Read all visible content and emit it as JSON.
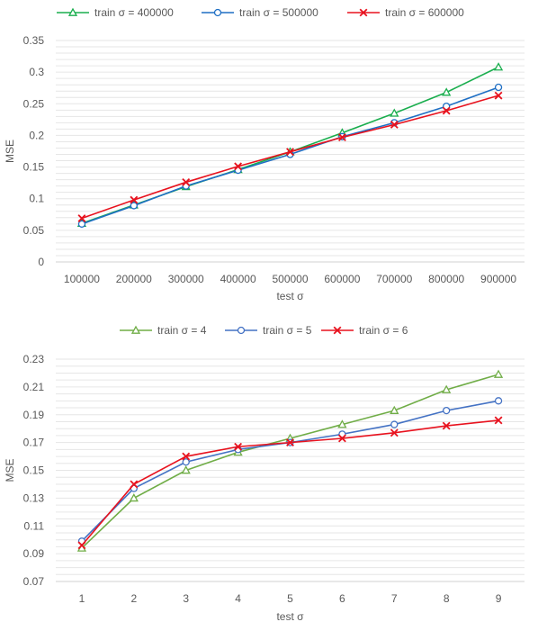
{
  "chart_data": [
    {
      "type": "line",
      "title": "",
      "xlabel": "test σ",
      "ylabel": "MSE",
      "categories": [
        "100000",
        "200000",
        "300000",
        "400000",
        "500000",
        "600000",
        "700000",
        "800000",
        "900000"
      ],
      "yticks": [
        "0",
        "0.05",
        "0.1",
        "0.15",
        "0.2",
        "0.25",
        "0.3",
        "0.35"
      ],
      "ylim": [
        0,
        0.35
      ],
      "grid": true,
      "legend_position": "top",
      "series": [
        {
          "name": "train σ = 400000",
          "color": "#1aae4e",
          "marker": "triangle",
          "values": [
            0.061,
            0.09,
            0.119,
            0.146,
            0.174,
            0.204,
            0.235,
            0.268,
            0.308
          ]
        },
        {
          "name": "train σ = 500000",
          "color": "#1f6fc4",
          "marker": "circle",
          "values": [
            0.06,
            0.089,
            0.12,
            0.145,
            0.17,
            0.198,
            0.22,
            0.246,
            0.276
          ]
        },
        {
          "name": "train σ = 600000",
          "color": "#e8121e",
          "marker": "x",
          "values": [
            0.069,
            0.098,
            0.126,
            0.151,
            0.174,
            0.197,
            0.217,
            0.239,
            0.263
          ]
        }
      ]
    },
    {
      "type": "line",
      "title": "",
      "xlabel": "test σ",
      "ylabel": "MSE",
      "categories": [
        "1",
        "2",
        "3",
        "4",
        "5",
        "6",
        "7",
        "8",
        "9"
      ],
      "yticks": [
        "0.07",
        "0.09",
        "0.11",
        "0.13",
        "0.15",
        "0.17",
        "0.19",
        "0.21",
        "0.23"
      ],
      "ylim": [
        0.07,
        0.23
      ],
      "grid": true,
      "legend_position": "top",
      "series": [
        {
          "name": "train σ = 4",
          "color": "#70ad47",
          "marker": "triangle",
          "values": [
            0.094,
            0.13,
            0.15,
            0.163,
            0.173,
            0.183,
            0.193,
            0.208,
            0.219
          ]
        },
        {
          "name": "train σ = 5",
          "color": "#4472c4",
          "marker": "circle",
          "values": [
            0.099,
            0.137,
            0.156,
            0.165,
            0.17,
            0.176,
            0.183,
            0.193,
            0.2
          ]
        },
        {
          "name": "train σ = 6",
          "color": "#e8121e",
          "marker": "x",
          "values": [
            0.096,
            0.14,
            0.16,
            0.167,
            0.17,
            0.173,
            0.177,
            0.182,
            0.186
          ]
        }
      ]
    }
  ]
}
